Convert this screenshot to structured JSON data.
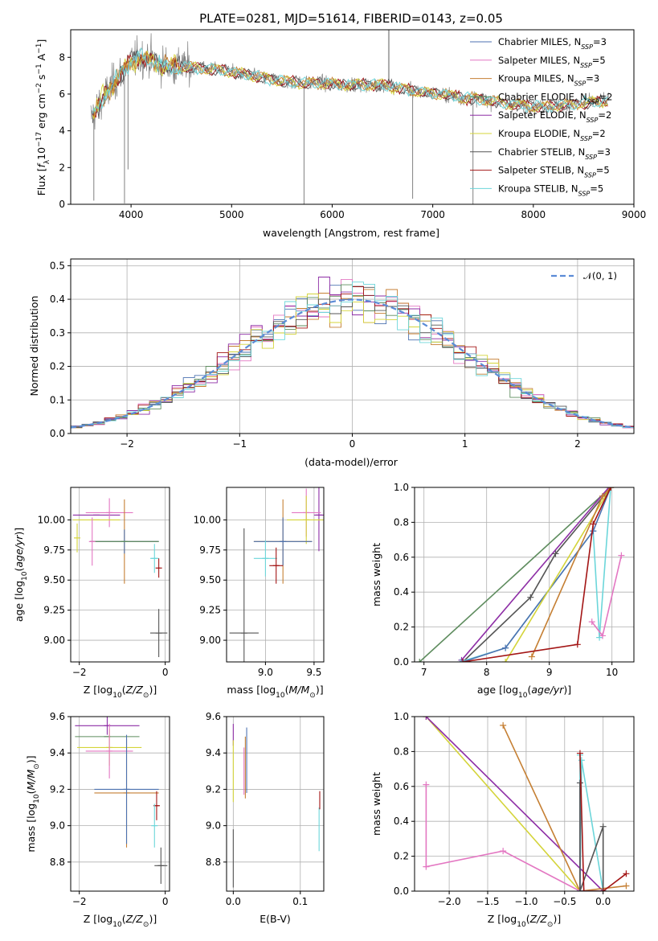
{
  "figure": {
    "title": "PLATE=0281, MJD=51614, FIBERID=0143, z=0.05"
  },
  "colors": {
    "Chabrier MILES": "#4c72b0",
    "Salpeter MILES": "#e377c2",
    "Kroupa MILES": "#c57f33",
    "Chabrier ELODIE": "#5e8c5e",
    "Salpeter ELODIE": "#8e2ea6",
    "Kroupa ELODIE": "#d4d43a",
    "Chabrier STELIB": "#555555",
    "Salpeter STELIB": "#a31515",
    "Kroupa STELIB": "#6cd6da",
    "data": "#808080",
    "normal": "#5b8bd6"
  },
  "chart_data": [
    {
      "id": "spectrum",
      "type": "line",
      "xlabel": "wavelength [Angstrom, rest frame]",
      "ylabel": "Flux [f_λ10^-17 erg cm^-2 s^-1 A^-1]",
      "xlim": [
        3400,
        9000
      ],
      "ylim": [
        0,
        9.5
      ],
      "xticks": [
        4000,
        5000,
        6000,
        7000,
        8000,
        9000
      ],
      "yticks": [
        0,
        2,
        4,
        6,
        8
      ],
      "legend_position": "top-right",
      "legend": [
        {
          "name": "Chabrier MILES",
          "nssp": "3"
        },
        {
          "name": "Salpeter MILES",
          "nssp": "5"
        },
        {
          "name": "Kroupa MILES",
          "nssp": "3"
        },
        {
          "name": "Chabrier ELODIE",
          "nssp": "2"
        },
        {
          "name": "Salpeter ELODIE",
          "nssp": "2"
        },
        {
          "name": "Kroupa ELODIE",
          "nssp": "2"
        },
        {
          "name": "Chabrier STELIB",
          "nssp": "3"
        },
        {
          "name": "Salpeter STELIB",
          "nssp": "5"
        },
        {
          "name": "Kroupa STELIB",
          "nssp": "5"
        }
      ],
      "continuum": {
        "x": [
          3600,
          3700,
          3800,
          3900,
          4000,
          4100,
          4200,
          4300,
          4400,
          4500,
          4700,
          4900,
          5100,
          5300,
          5500,
          5700,
          5900,
          6100,
          6300,
          6500,
          6700,
          6900,
          7100,
          7300,
          7500,
          7700,
          7900,
          8100,
          8300,
          8500,
          8700
        ],
        "y": [
          4.7,
          5.6,
          6.4,
          7.1,
          7.8,
          8.0,
          7.9,
          7.6,
          7.5,
          7.5,
          7.4,
          7.3,
          7.1,
          6.9,
          6.7,
          6.6,
          6.6,
          6.5,
          6.5,
          6.5,
          6.3,
          6.1,
          6.0,
          5.8,
          5.7,
          5.5,
          5.4,
          5.3,
          5.4,
          5.5,
          5.6
        ]
      },
      "absorption_features": [
        {
          "x": 3630,
          "y": 0.2
        },
        {
          "x": 3935,
          "y": 0.05
        },
        {
          "x": 3970,
          "y": 1.9
        },
        {
          "x": 5720,
          "y": 0.0
        },
        {
          "x": 6800,
          "y": 0.3
        },
        {
          "x": 7400,
          "y": 0.0
        }
      ],
      "emission_features": [
        {
          "x": 6563,
          "y": 9.5
        }
      ]
    },
    {
      "id": "residual-hist",
      "type": "histogram",
      "xlabel": "(data-model)/error",
      "ylabel": "Normed distribution",
      "xlim": [
        -2.5,
        2.5
      ],
      "ylim": [
        0,
        0.52
      ],
      "xticks": [
        -2,
        -1,
        0,
        1,
        2
      ],
      "yticks": [
        0.0,
        0.1,
        0.2,
        0.3,
        0.4,
        0.5
      ],
      "bin_width": 0.1,
      "legend_position": "top-right",
      "legend": "𝒩(0, 1)",
      "series_models": [
        "Chabrier MILES",
        "Salpeter MILES",
        "Kroupa MILES",
        "Chabrier ELODIE",
        "Salpeter ELODIE",
        "Kroupa ELODIE",
        "Chabrier STELIB",
        "Salpeter STELIB",
        "Kroupa STELIB"
      ]
    },
    {
      "id": "age-vs-Z",
      "type": "errorbar",
      "xlabel": "Z [log10(Z/Z⊙)]",
      "ylabel": "age  [log10(age/yr)]",
      "xlim": [
        -2.2,
        0.1
      ],
      "ylim": [
        8.82,
        10.27
      ],
      "xticks": [
        -2,
        0
      ],
      "yticks": [
        9.0,
        9.25,
        9.5,
        9.75,
        10.0
      ],
      "points": [
        {
          "model": "Salpeter ELODIE",
          "x": -1.6,
          "y": 10.04,
          "xerr": 0.55,
          "yerr": 0.0
        },
        {
          "model": "Salpeter MILES",
          "x": -1.3,
          "y": 10.06,
          "xerr": 0.55,
          "yerr": 0.12
        },
        {
          "model": "Kroupa ELODIE",
          "x": -1.6,
          "y": 10.0,
          "xerr": 0.55,
          "yerr": 0.0
        },
        {
          "model": "Kroupa MILES",
          "x": -0.95,
          "y": 9.82,
          "xerr": 0.8,
          "yerr": 0.35
        },
        {
          "model": "Chabrier MILES",
          "x": -0.95,
          "y": 9.82,
          "xerr": 0.8,
          "yerr": 0.1
        },
        {
          "model": "Chabrier ELODIE",
          "x": -0.95,
          "y": 9.82,
          "xerr": 0.8,
          "yerr": 0.0
        },
        {
          "model": "Salpeter MILES",
          "x": -1.7,
          "y": 9.82,
          "xerr": 0.0,
          "yerr": 0.2
        },
        {
          "model": "Kroupa ELODIE",
          "x": -2.05,
          "y": 9.85,
          "xerr": 0.0,
          "yerr": 0.12
        },
        {
          "model": "Kroupa STELIB",
          "x": -0.25,
          "y": 9.68,
          "xerr": 0.1,
          "yerr": 0.12
        },
        {
          "model": "Salpeter STELIB",
          "x": -0.15,
          "y": 9.6,
          "xerr": 0.02,
          "yerr": 0.08
        },
        {
          "model": "Chabrier STELIB",
          "x": -0.15,
          "y": 9.06,
          "xerr": 0.2,
          "yerr": 0.2
        }
      ]
    },
    {
      "id": "age-vs-mass",
      "type": "errorbar",
      "xlabel": "mass [log10(M/M⊙)]",
      "ylabel": "",
      "xlim": [
        8.6,
        9.6
      ],
      "ylim": [
        8.82,
        10.27
      ],
      "xticks": [
        9.0,
        9.5
      ],
      "yticks": [
        9.0,
        9.25,
        9.5,
        9.75,
        10.0
      ],
      "points": [
        {
          "model": "Salpeter ELODIE",
          "x": 9.55,
          "y": 10.04,
          "xerr": 0.05,
          "yerr": 0.3
        },
        {
          "model": "Salpeter MILES",
          "x": 9.42,
          "y": 10.06,
          "xerr": 0.15,
          "yerr": 0.2
        },
        {
          "model": "Kroupa ELODIE",
          "x": 9.42,
          "y": 10.0,
          "xerr": 0.2,
          "yerr": 0.2
        },
        {
          "model": "Kroupa MILES",
          "x": 9.18,
          "y": 9.82,
          "xerr": 0.3,
          "yerr": 0.35
        },
        {
          "model": "Chabrier MILES",
          "x": 9.18,
          "y": 9.82,
          "xerr": 0.3,
          "yerr": 0.2
        },
        {
          "model": "Kroupa STELIB",
          "x": 9.0,
          "y": 9.68,
          "xerr": 0.12,
          "yerr": 0.15
        },
        {
          "model": "Salpeter STELIB",
          "x": 9.11,
          "y": 9.62,
          "xerr": 0.07,
          "yerr": 0.15
        },
        {
          "model": "Chabrier STELIB",
          "x": 8.78,
          "y": 9.06,
          "xerr": 0.15,
          "yerr": 0.87
        }
      ]
    },
    {
      "id": "massweight-vs-age",
      "type": "line",
      "xlabel": "age  [log10(age/yr)]",
      "ylabel": "mass weight",
      "xlim": [
        6.85,
        10.35
      ],
      "ylim": [
        0,
        1.0
      ],
      "xticks": [
        7,
        8,
        9,
        10
      ],
      "yticks": [
        0.0,
        0.2,
        0.4,
        0.6,
        0.8,
        1.0
      ],
      "series": [
        {
          "model": "Chabrier ELODIE",
          "x": [
            6.93,
            9.98
          ],
          "y": [
            0.0,
            1.0
          ]
        },
        {
          "model": "Salpeter ELODIE",
          "x": [
            7.6,
            9.95
          ],
          "y": [
            0.01,
            1.0
          ]
        },
        {
          "model": "Chabrier STELIB",
          "x": [
            7.62,
            8.7,
            9.1,
            9.98
          ],
          "y": [
            0.0,
            0.37,
            0.62,
            1.0
          ]
        },
        {
          "model": "Kroupa STELIB",
          "x": [
            7.58,
            8.3,
            9.7,
            9.8,
            9.98
          ],
          "y": [
            0.0,
            0.08,
            0.75,
            0.14,
            1.0
          ]
        },
        {
          "model": "Chabrier MILES",
          "x": [
            7.62,
            8.3,
            9.7,
            9.98
          ],
          "y": [
            0.0,
            0.08,
            0.75,
            1.0
          ]
        },
        {
          "model": "Kroupa ELODIE",
          "x": [
            8.3,
            9.98
          ],
          "y": [
            0.0,
            1.0
          ]
        },
        {
          "model": "Kroupa MILES",
          "x": [
            8.72,
            9.85,
            9.98
          ],
          "y": [
            0.03,
            0.95,
            1.0
          ]
        },
        {
          "model": "Salpeter STELIB",
          "x": [
            7.62,
            9.45,
            9.7,
            9.98
          ],
          "y": [
            0.0,
            0.1,
            0.79,
            1.0
          ]
        },
        {
          "model": "Salpeter MILES",
          "x": [
            9.68,
            9.85,
            10.15
          ],
          "y": [
            0.23,
            0.15,
            0.61
          ]
        }
      ]
    },
    {
      "id": "mass-vs-Z",
      "type": "errorbar",
      "xlabel": "Z [log10(Z/Z⊙)]",
      "ylabel": "mass [log10(M/M⊙)]",
      "xlim": [
        -2.2,
        0.1
      ],
      "ylim": [
        8.64,
        9.6
      ],
      "xticks": [
        -2,
        0
      ],
      "yticks": [
        8.8,
        9.0,
        9.2,
        9.4,
        9.6
      ],
      "points": [
        {
          "model": "Salpeter ELODIE",
          "x": -1.35,
          "y": 9.55,
          "xerr": 0.75,
          "yerr": 0.05
        },
        {
          "model": "Chabrier ELODIE",
          "x": -1.35,
          "y": 9.49,
          "xerr": 0.75,
          "yerr": 0.0
        },
        {
          "model": "Kroupa ELODIE",
          "x": -1.3,
          "y": 9.43,
          "xerr": 0.75,
          "yerr": 0.1
        },
        {
          "model": "Salpeter MILES",
          "x": -1.3,
          "y": 9.41,
          "xerr": 0.55,
          "yerr": 0.15
        },
        {
          "model": "Kroupa MILES",
          "x": -0.9,
          "y": 9.18,
          "xerr": 0.75,
          "yerr": 0.3
        },
        {
          "model": "Chabrier MILES",
          "x": -0.9,
          "y": 9.2,
          "xerr": 0.75,
          "yerr": 0.3
        },
        {
          "model": "Salpeter STELIB",
          "x": -0.2,
          "y": 9.11,
          "xerr": 0.05,
          "yerr": 0.08
        },
        {
          "model": "Kroupa STELIB",
          "x": -0.25,
          "y": 9.0,
          "xerr": 0.02,
          "yerr": 0.12
        },
        {
          "model": "Chabrier STELIB",
          "x": -0.1,
          "y": 8.78,
          "xerr": 0.15,
          "yerr": 0.1
        }
      ]
    },
    {
      "id": "mass-vs-ebv",
      "type": "errorbar",
      "xlabel": "E(B-V)",
      "ylabel": "",
      "xlim": [
        -0.01,
        0.135
      ],
      "ylim": [
        8.64,
        9.6
      ],
      "xticks": [
        0.0,
        0.1
      ],
      "yticks": [
        8.8,
        9.0,
        9.2,
        9.4,
        9.6
      ],
      "points": [
        {
          "model": "Salpeter ELODIE",
          "x": 0.0,
          "y": 9.5,
          "xerr": 0.0,
          "yerr": 0.06
        },
        {
          "model": "Kroupa ELODIE",
          "x": 0.0,
          "y": 9.3,
          "xerr": 0.0,
          "yerr": 0.17
        },
        {
          "model": "Chabrier STELIB",
          "x": 0.0,
          "y": 8.82,
          "xerr": 0.0,
          "yerr": 0.16
        },
        {
          "model": "Salpeter MILES",
          "x": 0.016,
          "y": 9.3,
          "xerr": 0.0,
          "yerr": 0.13
        },
        {
          "model": "Kroupa MILES",
          "x": 0.018,
          "y": 9.32,
          "xerr": 0.0,
          "yerr": 0.17
        },
        {
          "model": "Chabrier MILES",
          "x": 0.02,
          "y": 9.36,
          "xerr": 0.0,
          "yerr": 0.18
        },
        {
          "model": "Kroupa STELIB",
          "x": 0.128,
          "y": 8.98,
          "xerr": 0.0,
          "yerr": 0.12
        },
        {
          "model": "Salpeter STELIB",
          "x": 0.129,
          "y": 9.14,
          "xerr": 0.0,
          "yerr": 0.05
        }
      ]
    },
    {
      "id": "massweight-vs-Z",
      "type": "line",
      "xlabel": "Z [log10(Z/Z⊙)]",
      "ylabel": "mass weight",
      "xlim": [
        -2.45,
        0.4
      ],
      "ylim": [
        0,
        1.0
      ],
      "xticks": [
        -2.0,
        -1.5,
        -1.0,
        -0.5,
        0.0
      ],
      "yticks": [
        0.0,
        0.2,
        0.4,
        0.6,
        0.8,
        1.0
      ],
      "series": [
        {
          "model": "Kroupa ELODIE",
          "x": [
            -2.3,
            -0.3,
            0.0
          ],
          "y": [
            1.0,
            0.0,
            0.0
          ]
        },
        {
          "model": "Salpeter ELODIE",
          "x": [
            -2.3,
            0.0
          ],
          "y": [
            1.0,
            0.0
          ]
        },
        {
          "model": "Kroupa MILES",
          "x": [
            -1.3,
            -0.3,
            0.3
          ],
          "y": [
            0.95,
            0.0,
            0.03
          ]
        },
        {
          "model": "Salpeter MILES",
          "x": [
            -2.3,
            -2.3,
            -1.3,
            -0.3,
            0.0
          ],
          "y": [
            0.61,
            0.14,
            0.23,
            0.0,
            0.0
          ]
        },
        {
          "model": "Kroupa STELIB",
          "x": [
            -0.3,
            -0.3,
            -0.28,
            0.0
          ],
          "y": [
            0.78,
            0.0,
            0.75,
            0.0
          ]
        },
        {
          "model": "Chabrier MILES",
          "x": [
            -0.3,
            -0.3,
            0.0
          ],
          "y": [
            0.62,
            0.0,
            0.0
          ]
        },
        {
          "model": "Chabrier STELIB",
          "x": [
            -0.3,
            -0.3,
            0.0,
            0.0
          ],
          "y": [
            0.62,
            0.0,
            0.37,
            0.0
          ]
        },
        {
          "model": "Salpeter STELIB",
          "x": [
            -0.3,
            -0.25,
            0.0,
            0.3
          ],
          "y": [
            0.79,
            0.0,
            0.0,
            0.1
          ]
        }
      ]
    }
  ]
}
